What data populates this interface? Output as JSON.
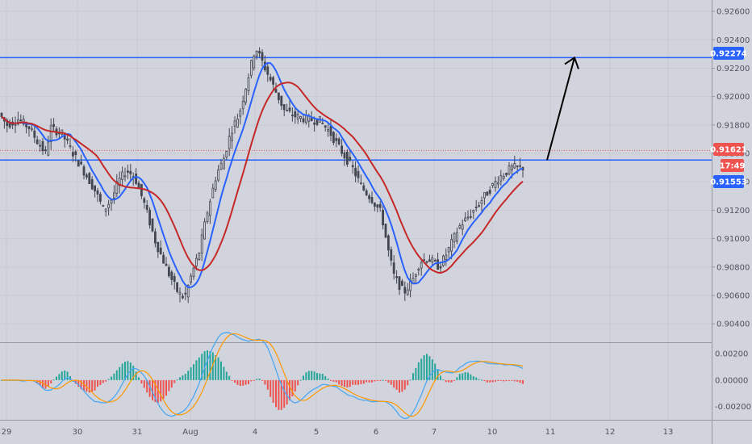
{
  "chart_data": {
    "type": "candlestick",
    "price_axis": {
      "ticks": [
        "0.92600",
        "0.92400",
        "0.92200",
        "0.92000",
        "0.91800",
        "0.91600",
        "0.91400",
        "0.91200",
        "0.91000",
        "0.90800",
        "0.90600",
        "0.90400"
      ],
      "range": [
        0.9027,
        0.9268
      ]
    },
    "time_axis": {
      "ticks": [
        "29",
        "30",
        "31",
        "Aug",
        "4",
        "5",
        "6",
        "7",
        "10",
        "11",
        "12",
        "13"
      ]
    },
    "ohlc_anchors": {
      "price": [
        0.919,
        0.918,
        0.9184,
        0.9178,
        0.9168,
        0.916,
        0.9178,
        0.9174,
        0.9158,
        0.9145,
        0.9133,
        0.912,
        0.9128,
        0.914,
        0.9148,
        0.9144,
        0.9125,
        0.9098,
        0.9076,
        0.9062,
        0.9058,
        0.9073,
        0.909,
        0.9118,
        0.9146,
        0.9155,
        0.9176,
        0.9188,
        0.9235,
        0.921,
        0.919,
        0.9186,
        0.9184,
        0.9183,
        0.9175,
        0.9162,
        0.915,
        0.9136,
        0.9128,
        0.9118,
        0.9093,
        0.9073,
        0.9062,
        0.907,
        0.9084,
        0.9086,
        0.908,
        0.9093,
        0.9108,
        0.9118,
        0.913,
        0.9143,
        0.915,
        0.915,
        0.9136,
        0.913,
        0.9125,
        0.9122,
        0.9128,
        0.914,
        0.9182,
        0.9162
      ],
      "x": [
        0,
        12,
        26,
        40,
        50,
        60,
        66,
        80,
        96,
        110,
        122,
        132,
        142,
        150,
        160,
        170,
        182,
        196,
        212,
        224,
        232,
        240,
        250,
        260,
        272,
        280,
        290,
        300,
        320,
        340,
        356,
        370,
        384,
        400,
        412,
        426,
        440,
        452,
        464,
        476,
        484,
        492,
        504,
        514,
        524,
        534,
        548,
        560,
        572,
        588,
        604,
        622,
        638,
        654,
        668,
        684,
        700,
        716,
        736,
        756,
        810,
        840
      ]
    },
    "axis_labels": {
      "current_price": "0.91621",
      "countdown": "17:49",
      "lower_level": "0.91553",
      "upper_level": "0.92274"
    },
    "horizontal_levels": [
      0.92274,
      0.91553
    ],
    "current_price": 0.91621,
    "annotation": {
      "type": "arrow",
      "from_price": 0.91553,
      "to_price": 0.92274
    },
    "moving_averages": [
      {
        "color": "#2962ff"
      },
      {
        "color": "#c62828"
      }
    ],
    "indicator": {
      "ticks": [
        "0.00200",
        "0.00000",
        "-0.00200"
      ],
      "range": [
        -0.003,
        0.0028
      ],
      "line_colors": [
        "#42a5f5",
        "#ff9800"
      ]
    }
  },
  "colors": {
    "background": "#d1d4dc",
    "candle": "#434651",
    "level_line": "#2962ff",
    "price_label": "#ef5350",
    "level_label": "#2962ff",
    "hist_up": "#26a69a",
    "hist_down": "#ef5350",
    "grid": "#c7cad3"
  }
}
